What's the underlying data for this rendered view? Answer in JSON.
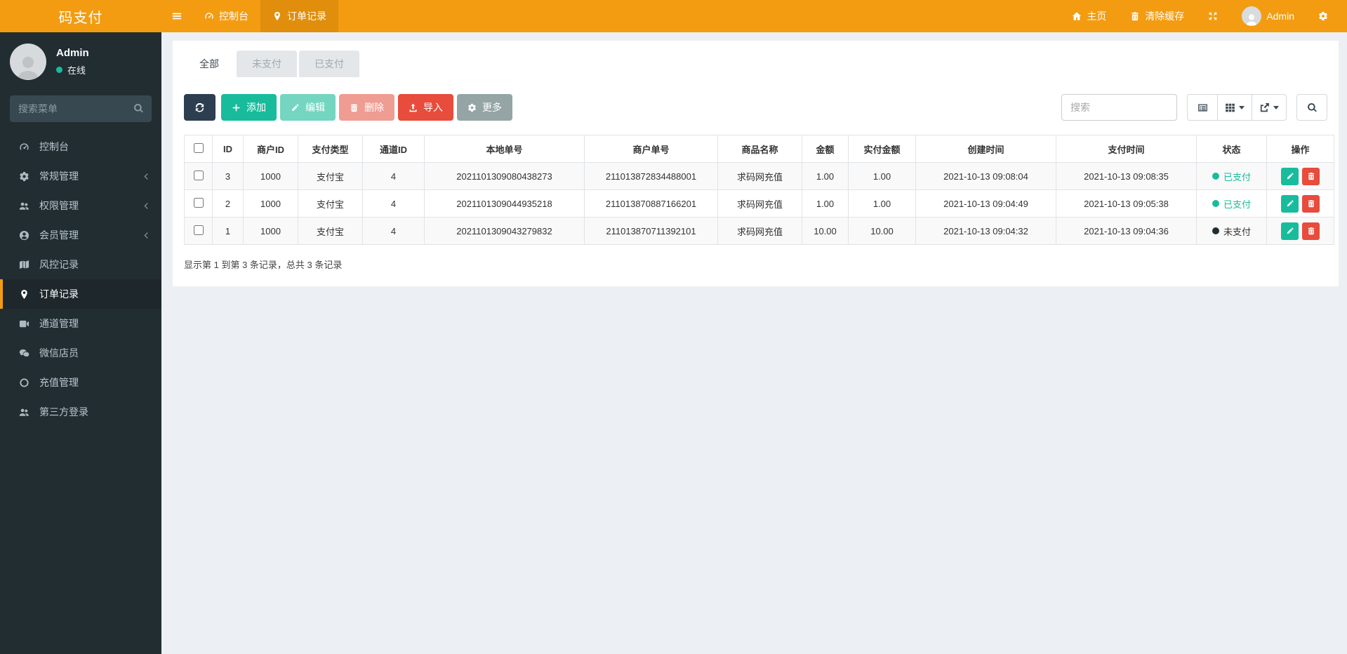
{
  "navbar": {
    "brand": "码支付",
    "console_label": "控制台",
    "orders_label": "订单记录",
    "home_label": "主页",
    "clear_cache_label": "清除缓存",
    "user_label": "Admin"
  },
  "sidebar": {
    "user_name": "Admin",
    "user_status": "在线",
    "search_placeholder": "搜索菜单",
    "items": [
      {
        "label": "控制台",
        "icon": "tachometer"
      },
      {
        "label": "常规管理",
        "icon": "cogs"
      },
      {
        "label": "权限管理",
        "icon": "users"
      },
      {
        "label": "会员管理",
        "icon": "user-circle"
      },
      {
        "label": "风控记录",
        "icon": "map"
      },
      {
        "label": "订单记录",
        "icon": "map-marker"
      },
      {
        "label": "通道管理",
        "icon": "video"
      },
      {
        "label": "微信店员",
        "icon": "wechat"
      },
      {
        "label": "充值管理",
        "icon": "circle-o"
      },
      {
        "label": "第三方登录",
        "icon": "users"
      }
    ]
  },
  "tabs": [
    {
      "label": "全部"
    },
    {
      "label": "未支付"
    },
    {
      "label": "已支付"
    }
  ],
  "toolbar": {
    "refresh_icon": "refresh",
    "add_label": "添加",
    "edit_label": "编辑",
    "delete_label": "删除",
    "import_label": "导入",
    "more_label": "更多",
    "search_placeholder": "搜索"
  },
  "table": {
    "headers": [
      "ID",
      "商户ID",
      "支付类型",
      "通道ID",
      "本地单号",
      "商户单号",
      "商品名称",
      "金额",
      "实付金额",
      "创建时间",
      "支付时间",
      "状态",
      "操作"
    ],
    "rows": [
      {
        "id": "3",
        "merchant_id": "1000",
        "pay_type": "支付宝",
        "channel_id": "4",
        "local_no": "2021101309080438273",
        "merchant_no": "211013872834488001",
        "product": "求码网充值",
        "amount": "1.00",
        "paid_amount": "1.00",
        "created_at": "2021-10-13 09:08:04",
        "paid_at": "2021-10-13 09:08:35",
        "status": "已支付",
        "status_class": "status paid"
      },
      {
        "id": "2",
        "merchant_id": "1000",
        "pay_type": "支付宝",
        "channel_id": "4",
        "local_no": "2021101309044935218",
        "merchant_no": "211013870887166201",
        "product": "求码网充值",
        "amount": "1.00",
        "paid_amount": "1.00",
        "created_at": "2021-10-13 09:04:49",
        "paid_at": "2021-10-13 09:05:38",
        "status": "已支付",
        "status_class": "status paid"
      },
      {
        "id": "1",
        "merchant_id": "1000",
        "pay_type": "支付宝",
        "channel_id": "4",
        "local_no": "2021101309043279832",
        "merchant_no": "211013870711392101",
        "product": "求码网充值",
        "amount": "10.00",
        "paid_amount": "10.00",
        "created_at": "2021-10-13 09:04:32",
        "paid_at": "2021-10-13 09:04:36",
        "status": "未支付",
        "status_class": "status unpaid"
      }
    ],
    "summary": "显示第 1 到第 3 条记录，总共 3 条记录"
  },
  "colors": {
    "accent": "#f39c12",
    "accent_dark": "#e08e0b",
    "success": "#18bc9c",
    "danger": "#e74c3c",
    "dark": "#2c3e50",
    "sidebar_bg": "#222d32"
  }
}
